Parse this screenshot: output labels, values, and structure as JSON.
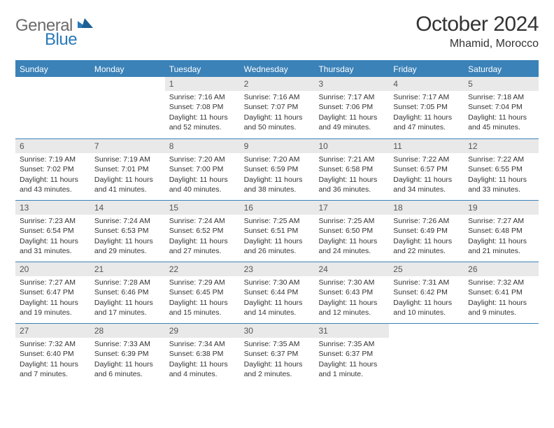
{
  "brand": {
    "part1": "General",
    "part2": "Blue"
  },
  "title": "October 2024",
  "location": "Mhamid, Morocco",
  "colors": {
    "header_bg": "#3b82b8",
    "daynum_bg": "#e9e9e9",
    "text": "#333333",
    "logo_gray": "#6b6b6b",
    "logo_blue": "#2a7ab8"
  },
  "days_of_week": [
    "Sunday",
    "Monday",
    "Tuesday",
    "Wednesday",
    "Thursday",
    "Friday",
    "Saturday"
  ],
  "weeks": [
    [
      null,
      null,
      {
        "n": "1",
        "sunrise": "Sunrise: 7:16 AM",
        "sunset": "Sunset: 7:08 PM",
        "day": "Daylight: 11 hours and 52 minutes."
      },
      {
        "n": "2",
        "sunrise": "Sunrise: 7:16 AM",
        "sunset": "Sunset: 7:07 PM",
        "day": "Daylight: 11 hours and 50 minutes."
      },
      {
        "n": "3",
        "sunrise": "Sunrise: 7:17 AM",
        "sunset": "Sunset: 7:06 PM",
        "day": "Daylight: 11 hours and 49 minutes."
      },
      {
        "n": "4",
        "sunrise": "Sunrise: 7:17 AM",
        "sunset": "Sunset: 7:05 PM",
        "day": "Daylight: 11 hours and 47 minutes."
      },
      {
        "n": "5",
        "sunrise": "Sunrise: 7:18 AM",
        "sunset": "Sunset: 7:04 PM",
        "day": "Daylight: 11 hours and 45 minutes."
      }
    ],
    [
      {
        "n": "6",
        "sunrise": "Sunrise: 7:19 AM",
        "sunset": "Sunset: 7:02 PM",
        "day": "Daylight: 11 hours and 43 minutes."
      },
      {
        "n": "7",
        "sunrise": "Sunrise: 7:19 AM",
        "sunset": "Sunset: 7:01 PM",
        "day": "Daylight: 11 hours and 41 minutes."
      },
      {
        "n": "8",
        "sunrise": "Sunrise: 7:20 AM",
        "sunset": "Sunset: 7:00 PM",
        "day": "Daylight: 11 hours and 40 minutes."
      },
      {
        "n": "9",
        "sunrise": "Sunrise: 7:20 AM",
        "sunset": "Sunset: 6:59 PM",
        "day": "Daylight: 11 hours and 38 minutes."
      },
      {
        "n": "10",
        "sunrise": "Sunrise: 7:21 AM",
        "sunset": "Sunset: 6:58 PM",
        "day": "Daylight: 11 hours and 36 minutes."
      },
      {
        "n": "11",
        "sunrise": "Sunrise: 7:22 AM",
        "sunset": "Sunset: 6:57 PM",
        "day": "Daylight: 11 hours and 34 minutes."
      },
      {
        "n": "12",
        "sunrise": "Sunrise: 7:22 AM",
        "sunset": "Sunset: 6:55 PM",
        "day": "Daylight: 11 hours and 33 minutes."
      }
    ],
    [
      {
        "n": "13",
        "sunrise": "Sunrise: 7:23 AM",
        "sunset": "Sunset: 6:54 PM",
        "day": "Daylight: 11 hours and 31 minutes."
      },
      {
        "n": "14",
        "sunrise": "Sunrise: 7:24 AM",
        "sunset": "Sunset: 6:53 PM",
        "day": "Daylight: 11 hours and 29 minutes."
      },
      {
        "n": "15",
        "sunrise": "Sunrise: 7:24 AM",
        "sunset": "Sunset: 6:52 PM",
        "day": "Daylight: 11 hours and 27 minutes."
      },
      {
        "n": "16",
        "sunrise": "Sunrise: 7:25 AM",
        "sunset": "Sunset: 6:51 PM",
        "day": "Daylight: 11 hours and 26 minutes."
      },
      {
        "n": "17",
        "sunrise": "Sunrise: 7:25 AM",
        "sunset": "Sunset: 6:50 PM",
        "day": "Daylight: 11 hours and 24 minutes."
      },
      {
        "n": "18",
        "sunrise": "Sunrise: 7:26 AM",
        "sunset": "Sunset: 6:49 PM",
        "day": "Daylight: 11 hours and 22 minutes."
      },
      {
        "n": "19",
        "sunrise": "Sunrise: 7:27 AM",
        "sunset": "Sunset: 6:48 PM",
        "day": "Daylight: 11 hours and 21 minutes."
      }
    ],
    [
      {
        "n": "20",
        "sunrise": "Sunrise: 7:27 AM",
        "sunset": "Sunset: 6:47 PM",
        "day": "Daylight: 11 hours and 19 minutes."
      },
      {
        "n": "21",
        "sunrise": "Sunrise: 7:28 AM",
        "sunset": "Sunset: 6:46 PM",
        "day": "Daylight: 11 hours and 17 minutes."
      },
      {
        "n": "22",
        "sunrise": "Sunrise: 7:29 AM",
        "sunset": "Sunset: 6:45 PM",
        "day": "Daylight: 11 hours and 15 minutes."
      },
      {
        "n": "23",
        "sunrise": "Sunrise: 7:30 AM",
        "sunset": "Sunset: 6:44 PM",
        "day": "Daylight: 11 hours and 14 minutes."
      },
      {
        "n": "24",
        "sunrise": "Sunrise: 7:30 AM",
        "sunset": "Sunset: 6:43 PM",
        "day": "Daylight: 11 hours and 12 minutes."
      },
      {
        "n": "25",
        "sunrise": "Sunrise: 7:31 AM",
        "sunset": "Sunset: 6:42 PM",
        "day": "Daylight: 11 hours and 10 minutes."
      },
      {
        "n": "26",
        "sunrise": "Sunrise: 7:32 AM",
        "sunset": "Sunset: 6:41 PM",
        "day": "Daylight: 11 hours and 9 minutes."
      }
    ],
    [
      {
        "n": "27",
        "sunrise": "Sunrise: 7:32 AM",
        "sunset": "Sunset: 6:40 PM",
        "day": "Daylight: 11 hours and 7 minutes."
      },
      {
        "n": "28",
        "sunrise": "Sunrise: 7:33 AM",
        "sunset": "Sunset: 6:39 PM",
        "day": "Daylight: 11 hours and 6 minutes."
      },
      {
        "n": "29",
        "sunrise": "Sunrise: 7:34 AM",
        "sunset": "Sunset: 6:38 PM",
        "day": "Daylight: 11 hours and 4 minutes."
      },
      {
        "n": "30",
        "sunrise": "Sunrise: 7:35 AM",
        "sunset": "Sunset: 6:37 PM",
        "day": "Daylight: 11 hours and 2 minutes."
      },
      {
        "n": "31",
        "sunrise": "Sunrise: 7:35 AM",
        "sunset": "Sunset: 6:37 PM",
        "day": "Daylight: 11 hours and 1 minute."
      },
      null,
      null
    ]
  ]
}
